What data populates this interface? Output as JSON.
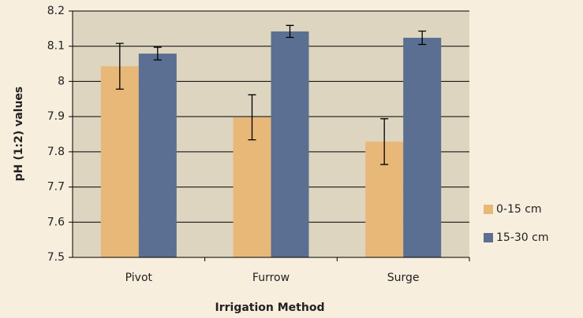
{
  "chart_data": {
    "type": "bar",
    "x_label": "Irrigation Method",
    "y_label": "pH (1:2) values",
    "categories": [
      "Pivot",
      "Furrow",
      "Surge"
    ],
    "series": [
      {
        "name": "0-15 cm",
        "color": "#e8b878",
        "values": [
          8.043,
          7.898,
          7.829
        ],
        "errors": [
          0.065,
          0.064,
          0.065
        ]
      },
      {
        "name": "15-30 cm",
        "color": "#5a6f91",
        "values": [
          8.079,
          8.142,
          8.124
        ],
        "errors": [
          0.018,
          0.017,
          0.019
        ]
      }
    ],
    "ylim": [
      7.5,
      8.2
    ],
    "yticks": [
      7.5,
      7.6,
      7.7,
      7.8,
      7.9,
      8,
      8.1,
      8.2
    ],
    "grid": true,
    "legend": "right"
  }
}
